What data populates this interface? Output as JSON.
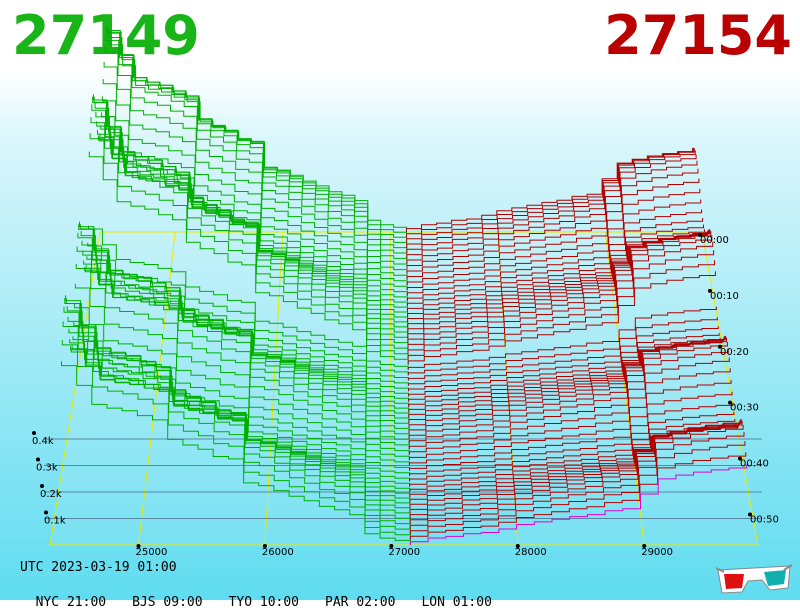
{
  "header": {
    "bid_price": "27149",
    "ask_price": "27154",
    "bid_color": "#18b418",
    "ask_color": "#bb0000"
  },
  "footer": {
    "utc": "UTC 2023-03-19 01:00",
    "cities": [
      "NYC 21:00",
      "BJS 09:00",
      "TYO 10:00",
      "PAR 02:00",
      "LON 01:00"
    ]
  },
  "icons": {
    "glasses": "3d-glasses-icon"
  },
  "chart_data": {
    "type": "3d-depth-chart",
    "x_ticks": [
      "25000",
      "26000",
      "27000",
      "28000",
      "29000"
    ],
    "x_values": [
      25000,
      26000,
      27000,
      28000,
      29000
    ],
    "x_range": [
      24300,
      29900
    ],
    "z_ticks": [
      "0.1k",
      "0.2k",
      "0.3k",
      "0.4k"
    ],
    "z_values": [
      100,
      200,
      300,
      400
    ],
    "time_ticks": [
      "00:00",
      "00:10",
      "00:20",
      "00:30",
      "00:40",
      "00:50"
    ],
    "mid_price": 27151,
    "snapshot_count": 60,
    "series": [
      {
        "side": "bid",
        "color": "#00b000"
      },
      {
        "side": "ask",
        "color": "#b00000"
      }
    ],
    "latest_ask_color": "#dd00dd",
    "grid_color": "#e8e800",
    "grid": true
  }
}
